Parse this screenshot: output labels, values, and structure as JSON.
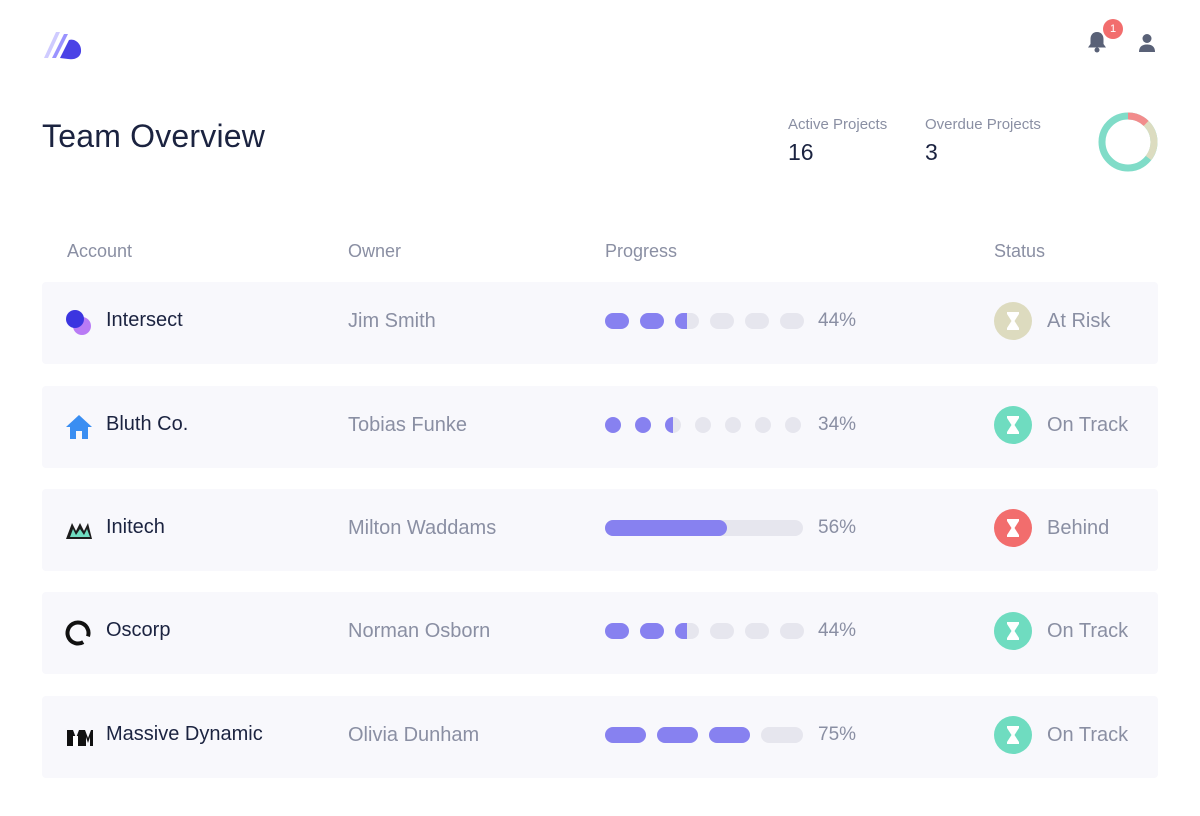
{
  "header": {
    "title": "Team Overview",
    "notifications_count": "1"
  },
  "stats": {
    "active_label": "Active Projects",
    "active_value": "16",
    "overdue_label": "Overdue Projects",
    "overdue_value": "3",
    "donut_fraction_overdue": 0.19
  },
  "table": {
    "columns": [
      "Account",
      "Owner",
      "Progress",
      "Status"
    ],
    "rows": [
      {
        "account": "Intersect",
        "icon": "intersect-logo-icon",
        "owner": "Jim Smith",
        "progress_label": "44%",
        "progress": 0.44,
        "progress_style": "segments-6",
        "status": "At Risk",
        "status_color": "#dddbbf"
      },
      {
        "account": "Bluth Co.",
        "icon": "house-logo-icon",
        "owner": "Tobias Funke",
        "progress_label": "34%",
        "progress": 0.34,
        "progress_style": "dots-7",
        "status": "On Track",
        "status_color": "#6fdcc0"
      },
      {
        "account": "Initech",
        "icon": "initech-logo-icon",
        "owner": "Milton Waddams",
        "progress_label": "56%",
        "progress": 0.56,
        "progress_style": "bar",
        "status": "Behind",
        "status_color": "#f26d6d"
      },
      {
        "account": "Oscorp",
        "icon": "oscorp-logo-icon",
        "owner": "Norman Osborn",
        "progress_label": "44%",
        "progress": 0.44,
        "progress_style": "segments-6",
        "status": "On Track",
        "status_color": "#6fdcc0"
      },
      {
        "account": "Massive Dynamic",
        "icon": "massive-dynamic-logo-icon",
        "owner": "Olivia Dunham",
        "progress_label": "75%",
        "progress": 0.75,
        "progress_style": "segments-4",
        "status": "On Track",
        "status_color": "#6fdcc0"
      }
    ]
  },
  "colors": {
    "accent": "#8781f0",
    "track": "#e6e6ee",
    "title": "#1b2340",
    "muted": "#8a8fa3"
  }
}
